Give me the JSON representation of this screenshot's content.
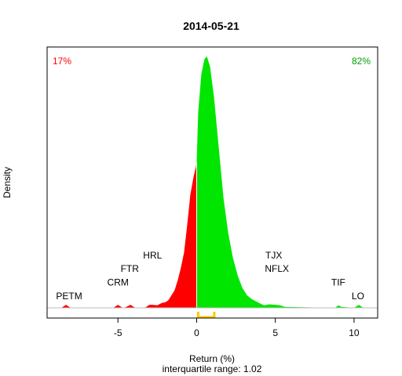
{
  "chart_data": {
    "type": "area",
    "title": "2014-05-21",
    "xlabel": "Return (%)",
    "subtitle": "interquartile range: 1.02",
    "ylabel": "Density",
    "xlim": [
      -9.5,
      11.5
    ],
    "ylim": [
      0,
      1
    ],
    "x_ticks": [
      -5,
      0,
      5,
      10
    ],
    "x_tick_labels": [
      "-5",
      "0",
      "5",
      "10"
    ],
    "pct_negative": "17%",
    "pct_positive": "82%",
    "colors": {
      "negative": "#ff0000",
      "positive": "#00e600",
      "iqr": "#ffc800",
      "negative_text": "#ff0000",
      "positive_text": "#00a000",
      "baseline": "#bebebe"
    },
    "iqr": [
      0.1,
      1.12
    ],
    "density_negative": [
      [
        -8.6,
        0
      ],
      [
        -8.3,
        0.012
      ],
      [
        -8.0,
        0
      ],
      [
        -5.3,
        0
      ],
      [
        -5.0,
        0.012
      ],
      [
        -4.7,
        0
      ],
      [
        -4.6,
        0
      ],
      [
        -4.2,
        0.012
      ],
      [
        -3.9,
        0
      ],
      [
        -3.3,
        0
      ],
      [
        -3.0,
        0.012
      ],
      [
        -2.8,
        0.012
      ],
      [
        -2.5,
        0.01
      ],
      [
        -2.2,
        0.02
      ],
      [
        -2.0,
        0.022
      ],
      [
        -1.8,
        0.03
      ],
      [
        -1.6,
        0.05
      ],
      [
        -1.4,
        0.07
      ],
      [
        -1.2,
        0.11
      ],
      [
        -1.0,
        0.16
      ],
      [
        -0.8,
        0.22
      ],
      [
        -0.6,
        0.33
      ],
      [
        -0.4,
        0.45
      ],
      [
        -0.2,
        0.52
      ],
      [
        -0.05,
        0.56
      ],
      [
        0,
        0.58
      ]
    ],
    "density_positive": [
      [
        0,
        0.58
      ],
      [
        0.1,
        0.78
      ],
      [
        0.3,
        0.93
      ],
      [
        0.5,
        0.99
      ],
      [
        0.65,
        1.0
      ],
      [
        0.85,
        0.96
      ],
      [
        1.1,
        0.84
      ],
      [
        1.4,
        0.64
      ],
      [
        1.7,
        0.44
      ],
      [
        2.0,
        0.3
      ],
      [
        2.3,
        0.2
      ],
      [
        2.6,
        0.13
      ],
      [
        2.9,
        0.08
      ],
      [
        3.2,
        0.05
      ],
      [
        3.5,
        0.035
      ],
      [
        3.8,
        0.025
      ],
      [
        4.1,
        0.015
      ],
      [
        4.3,
        0.01
      ],
      [
        4.6,
        0.014
      ],
      [
        5.0,
        0.012
      ],
      [
        5.3,
        0.01
      ],
      [
        5.6,
        0.004
      ],
      [
        8.8,
        0
      ],
      [
        9.0,
        0.01
      ],
      [
        9.2,
        0.004
      ],
      [
        10.0,
        0
      ],
      [
        10.3,
        0.012
      ],
      [
        10.6,
        0
      ]
    ],
    "labels": [
      {
        "text": "PETM",
        "x": -8.1,
        "y": 0.035
      },
      {
        "text": "CRM",
        "x": -5.0,
        "y": 0.089
      },
      {
        "text": "FTR",
        "x": -4.25,
        "y": 0.143
      },
      {
        "text": "HRL",
        "x": -2.8,
        "y": 0.196
      },
      {
        "text": "TJX",
        "x": 4.9,
        "y": 0.196
      },
      {
        "text": "NFLX",
        "x": 5.1,
        "y": 0.143
      },
      {
        "text": "TIF",
        "x": 9.0,
        "y": 0.089
      },
      {
        "text": "LO",
        "x": 10.25,
        "y": 0.035
      }
    ]
  }
}
